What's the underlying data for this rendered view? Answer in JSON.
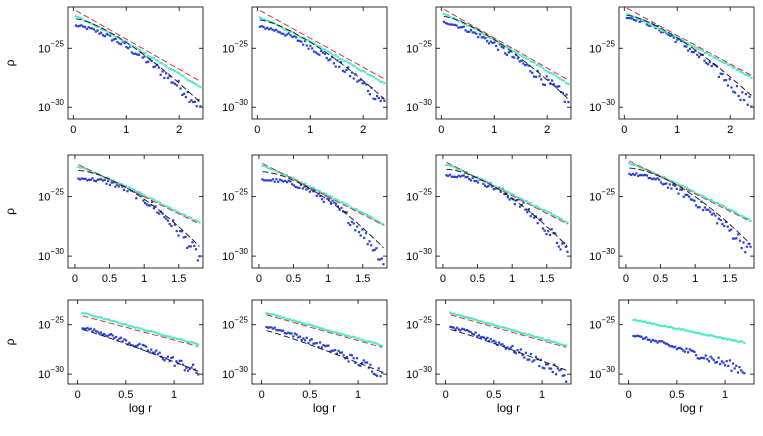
{
  "figure": {
    "ylabel": "ρ",
    "xlabel": "log r"
  },
  "colors": {
    "dark_blue_points": "#2a3fd6",
    "cyan_points": "#4ee8c8",
    "red_dashed": "#e02020",
    "black_dashed": "#111111"
  },
  "chart_data": [
    {
      "type": "scatter",
      "row": 0,
      "col": 0,
      "ylabel": "ρ",
      "xlabel": "",
      "xticks": [
        0,
        1,
        2
      ],
      "yticks": [
        {
          "base": "10",
          "exp": "−25",
          "value": -25
        },
        {
          "base": "10",
          "exp": "−30",
          "value": -30
        }
      ],
      "xlim": [
        -0.1,
        2.45
      ],
      "ylim": [
        -31,
        -21.5
      ],
      "series": [
        {
          "name": "blue",
          "kind": "points",
          "x_range": [
            0.05,
            2.4
          ],
          "y_start": -23.1,
          "y_end": -29.9,
          "curvature": 1.5
        },
        {
          "name": "cyan",
          "kind": "points",
          "x_range": [
            0.05,
            2.4
          ],
          "y_start": -22.3,
          "y_end": -28.3,
          "curvature": 1.1
        },
        {
          "name": "red",
          "kind": "dashed",
          "x_range": [
            0.05,
            2.4
          ],
          "y_start": -21.8,
          "y_end": -27.8,
          "curvature": 1.0
        },
        {
          "name": "black",
          "kind": "dashed",
          "x_range": [
            0.05,
            2.4
          ],
          "y_start": -22.5,
          "y_end": -29.6,
          "curvature": 1.4
        }
      ]
    },
    {
      "type": "scatter",
      "row": 0,
      "col": 1,
      "xlabel": "",
      "xticks": [
        0,
        1,
        2
      ],
      "yticks": [
        {
          "base": "10",
          "exp": "−25",
          "value": -25
        },
        {
          "base": "10",
          "exp": "−30",
          "value": -30
        }
      ],
      "xlim": [
        -0.1,
        2.45
      ],
      "ylim": [
        -31,
        -21.5
      ],
      "series": [
        {
          "name": "blue",
          "kind": "points",
          "x_range": [
            0.05,
            2.4
          ],
          "y_start": -23.2,
          "y_end": -29.6,
          "curvature": 1.5
        },
        {
          "name": "cyan",
          "kind": "points",
          "x_range": [
            0.05,
            2.4
          ],
          "y_start": -22.4,
          "y_end": -28.0,
          "curvature": 1.1
        },
        {
          "name": "red",
          "kind": "dashed",
          "x_range": [
            0.05,
            2.4
          ],
          "y_start": -21.8,
          "y_end": -27.6,
          "curvature": 1.0
        },
        {
          "name": "black",
          "kind": "dashed",
          "x_range": [
            0.05,
            2.4
          ],
          "y_start": -22.6,
          "y_end": -29.3,
          "curvature": 1.4
        }
      ]
    },
    {
      "type": "scatter",
      "row": 0,
      "col": 2,
      "xlabel": "",
      "xticks": [
        0,
        1,
        2
      ],
      "yticks": [
        {
          "base": "10",
          "exp": "−25",
          "value": -25
        },
        {
          "base": "10",
          "exp": "−30",
          "value": -30
        }
      ],
      "xlim": [
        -0.1,
        2.45
      ],
      "ylim": [
        -31,
        -21.5
      ],
      "series": [
        {
          "name": "blue",
          "kind": "points",
          "x_range": [
            0.05,
            2.4
          ],
          "y_start": -22.8,
          "y_end": -29.4,
          "curvature": 1.4
        },
        {
          "name": "cyan",
          "kind": "points",
          "x_range": [
            0.05,
            2.4
          ],
          "y_start": -22.1,
          "y_end": -28.0,
          "curvature": 1.1
        },
        {
          "name": "red",
          "kind": "dashed",
          "x_range": [
            0.05,
            2.4
          ],
          "y_start": -21.7,
          "y_end": -27.7,
          "curvature": 1.0
        },
        {
          "name": "black",
          "kind": "dashed",
          "x_range": [
            0.05,
            2.4
          ],
          "y_start": -22.3,
          "y_end": -29.3,
          "curvature": 1.4
        }
      ]
    },
    {
      "type": "scatter",
      "row": 0,
      "col": 3,
      "xlabel": "",
      "xticks": [
        0,
        1,
        2
      ],
      "yticks": [
        {
          "base": "10",
          "exp": "−25",
          "value": -25
        },
        {
          "base": "10",
          "exp": "−30",
          "value": -30
        }
      ],
      "xlim": [
        -0.1,
        2.45
      ],
      "ylim": [
        -31,
        -21.5
      ],
      "series": [
        {
          "name": "blue",
          "kind": "points",
          "x_range": [
            0.05,
            2.4
          ],
          "y_start": -22.4,
          "y_end": -29.8,
          "curvature": 1.5
        },
        {
          "name": "cyan",
          "kind": "points",
          "x_range": [
            0.05,
            2.4
          ],
          "y_start": -22.1,
          "y_end": -27.5,
          "curvature": 1.1
        },
        {
          "name": "red",
          "kind": "dashed",
          "x_range": [
            0.05,
            2.4
          ],
          "y_start": -21.6,
          "y_end": -27.3,
          "curvature": 1.0
        },
        {
          "name": "black",
          "kind": "dashed",
          "x_range": [
            0.05,
            2.4
          ],
          "y_start": -22.2,
          "y_end": -29.0,
          "curvature": 1.4
        }
      ]
    },
    {
      "type": "scatter",
      "row": 1,
      "col": 0,
      "ylabel": "ρ",
      "xlabel": "",
      "xticks": [
        0,
        0.5,
        1,
        1.5
      ],
      "yticks": [
        {
          "base": "10",
          "exp": "−25",
          "value": -25
        },
        {
          "base": "10",
          "exp": "−30",
          "value": -30
        }
      ],
      "xlim": [
        -0.1,
        1.85
      ],
      "ylim": [
        -31,
        -21.5
      ],
      "series": [
        {
          "name": "blue",
          "kind": "points",
          "x_range": [
            0.05,
            1.8
          ],
          "y_start": -23.5,
          "y_end": -30.2,
          "curvature": 2.2
        },
        {
          "name": "cyan",
          "kind": "points",
          "x_range": [
            0.05,
            1.8
          ],
          "y_start": -22.5,
          "y_end": -27.2,
          "curvature": 1.1
        },
        {
          "name": "red",
          "kind": "dashed",
          "x_range": [
            0.05,
            1.8
          ],
          "y_start": -22.3,
          "y_end": -27.3,
          "curvature": 1.0
        },
        {
          "name": "black",
          "kind": "dashed",
          "x_range": [
            0.05,
            1.8
          ],
          "y_start": -22.8,
          "y_end": -29.2,
          "curvature": 1.6
        }
      ]
    },
    {
      "type": "scatter",
      "row": 1,
      "col": 1,
      "xlabel": "",
      "xticks": [
        0,
        0.5,
        1,
        1.5
      ],
      "yticks": [
        {
          "base": "10",
          "exp": "−25",
          "value": -25
        },
        {
          "base": "10",
          "exp": "−30",
          "value": -30
        }
      ],
      "xlim": [
        -0.1,
        1.85
      ],
      "ylim": [
        -31,
        -21.5
      ],
      "series": [
        {
          "name": "blue",
          "kind": "points",
          "x_range": [
            0.05,
            1.8
          ],
          "y_start": -23.6,
          "y_end": -30.4,
          "curvature": 2.2
        },
        {
          "name": "cyan",
          "kind": "points",
          "x_range": [
            0.05,
            1.8
          ],
          "y_start": -22.4,
          "y_end": -27.3,
          "curvature": 1.1
        },
        {
          "name": "red",
          "kind": "dashed",
          "x_range": [
            0.05,
            1.8
          ],
          "y_start": -22.2,
          "y_end": -27.4,
          "curvature": 1.0
        },
        {
          "name": "black",
          "kind": "dashed",
          "x_range": [
            0.05,
            1.8
          ],
          "y_start": -22.9,
          "y_end": -29.3,
          "curvature": 1.6
        }
      ]
    },
    {
      "type": "scatter",
      "row": 1,
      "col": 2,
      "xlabel": "",
      "xticks": [
        0,
        0.5,
        1,
        1.5
      ],
      "yticks": [
        {
          "base": "10",
          "exp": "−25",
          "value": -25
        },
        {
          "base": "10",
          "exp": "−30",
          "value": -30
        }
      ],
      "xlim": [
        -0.1,
        1.85
      ],
      "ylim": [
        -31,
        -21.5
      ],
      "series": [
        {
          "name": "blue",
          "kind": "points",
          "x_range": [
            0.05,
            1.8
          ],
          "y_start": -23.2,
          "y_end": -29.8,
          "curvature": 2.0
        },
        {
          "name": "cyan",
          "kind": "points",
          "x_range": [
            0.05,
            1.8
          ],
          "y_start": -22.3,
          "y_end": -27.2,
          "curvature": 1.1
        },
        {
          "name": "red",
          "kind": "dashed",
          "x_range": [
            0.05,
            1.8
          ],
          "y_start": -22.1,
          "y_end": -27.3,
          "curvature": 1.0
        },
        {
          "name": "black",
          "kind": "dashed",
          "x_range": [
            0.05,
            1.8
          ],
          "y_start": -22.7,
          "y_end": -29.2,
          "curvature": 1.6
        }
      ]
    },
    {
      "type": "scatter",
      "row": 1,
      "col": 3,
      "xlabel": "",
      "xticks": [
        0,
        0.5,
        1,
        1.5
      ],
      "yticks": [
        {
          "base": "10",
          "exp": "−25",
          "value": -25
        },
        {
          "base": "10",
          "exp": "−30",
          "value": -30
        }
      ],
      "xlim": [
        -0.1,
        1.85
      ],
      "ylim": [
        -31,
        -21.5
      ],
      "series": [
        {
          "name": "blue",
          "kind": "points",
          "x_range": [
            0.05,
            1.8
          ],
          "y_start": -23.1,
          "y_end": -29.6,
          "curvature": 1.7
        },
        {
          "name": "cyan",
          "kind": "points",
          "x_range": [
            0.05,
            1.8
          ],
          "y_start": -22.2,
          "y_end": -27.0,
          "curvature": 1.1
        },
        {
          "name": "red",
          "kind": "dashed",
          "x_range": [
            0.05,
            1.8
          ],
          "y_start": -22.0,
          "y_end": -27.1,
          "curvature": 1.0
        },
        {
          "name": "black",
          "kind": "dashed",
          "x_range": [
            0.05,
            1.8
          ],
          "y_start": -22.6,
          "y_end": -29.0,
          "curvature": 1.6
        }
      ]
    },
    {
      "type": "scatter",
      "row": 2,
      "col": 0,
      "ylabel": "ρ",
      "xlabel": "log r",
      "xticks": [
        0,
        0.5,
        1
      ],
      "yticks": [
        {
          "base": "10",
          "exp": "−25",
          "value": -25
        },
        {
          "base": "10",
          "exp": "−30",
          "value": -30
        }
      ],
      "xlim": [
        -0.1,
        1.3
      ],
      "ylim": [
        -31,
        -22.5
      ],
      "series": [
        {
          "name": "blue",
          "kind": "points",
          "x_range": [
            0.05,
            1.25
          ],
          "y_start": -25.3,
          "y_end": -29.8,
          "curvature": 1.2
        },
        {
          "name": "cyan",
          "kind": "points",
          "x_range": [
            0.05,
            1.25
          ],
          "y_start": -23.8,
          "y_end": -27.0,
          "curvature": 1.0
        },
        {
          "name": "red",
          "kind": "dashed",
          "x_range": [
            0.05,
            1.25
          ],
          "y_start": -24.1,
          "y_end": -27.2,
          "curvature": 1.0
        },
        {
          "name": "black",
          "kind": "dashed",
          "x_range": [
            0.05,
            1.25
          ],
          "y_start": -25.5,
          "y_end": -29.7,
          "curvature": 1.1
        }
      ]
    },
    {
      "type": "scatter",
      "row": 2,
      "col": 1,
      "xlabel": "log r",
      "xticks": [
        0,
        0.5,
        1
      ],
      "yticks": [
        {
          "base": "10",
          "exp": "−25",
          "value": -25
        },
        {
          "base": "10",
          "exp": "−30",
          "value": -30
        }
      ],
      "xlim": [
        -0.1,
        1.3
      ],
      "ylim": [
        -31,
        -22.5
      ],
      "series": [
        {
          "name": "blue",
          "kind": "points",
          "x_range": [
            0.05,
            1.25
          ],
          "y_start": -25.2,
          "y_end": -29.9,
          "curvature": 1.2
        },
        {
          "name": "cyan",
          "kind": "points",
          "x_range": [
            0.05,
            1.25
          ],
          "y_start": -23.8,
          "y_end": -27.1,
          "curvature": 1.0
        },
        {
          "name": "red",
          "kind": "dashed",
          "x_range": [
            0.05,
            1.25
          ],
          "y_start": -24.0,
          "y_end": -27.3,
          "curvature": 1.0
        },
        {
          "name": "black",
          "kind": "dashed",
          "x_range": [
            0.05,
            1.25
          ],
          "y_start": -25.6,
          "y_end": -29.8,
          "curvature": 1.1
        }
      ]
    },
    {
      "type": "scatter",
      "row": 2,
      "col": 2,
      "xlabel": "log r",
      "xticks": [
        0,
        0.5,
        1
      ],
      "yticks": [
        {
          "base": "10",
          "exp": "−25",
          "value": -25
        },
        {
          "base": "10",
          "exp": "−30",
          "value": -30
        }
      ],
      "xlim": [
        -0.1,
        1.3
      ],
      "ylim": [
        -31,
        -22.5
      ],
      "series": [
        {
          "name": "blue",
          "kind": "points",
          "x_range": [
            0.05,
            1.25
          ],
          "y_start": -25.3,
          "y_end": -30.2,
          "curvature": 1.3
        },
        {
          "name": "cyan",
          "kind": "points",
          "x_range": [
            0.05,
            1.25
          ],
          "y_start": -23.8,
          "y_end": -27.1,
          "curvature": 1.0
        },
        {
          "name": "red",
          "kind": "dashed",
          "x_range": [
            0.05,
            1.25
          ],
          "y_start": -24.0,
          "y_end": -27.3,
          "curvature": 1.0
        },
        {
          "name": "black",
          "kind": "dashed",
          "x_range": [
            0.05,
            1.25
          ],
          "y_start": -25.5,
          "y_end": -29.6,
          "curvature": 1.1
        }
      ]
    },
    {
      "type": "scatter",
      "row": 2,
      "col": 3,
      "xlabel": "log r",
      "xticks": [
        0,
        0.5,
        1
      ],
      "yticks": [
        {
          "base": "10",
          "exp": "−25",
          "value": -25
        },
        {
          "base": "10",
          "exp": "−30",
          "value": -30
        }
      ],
      "xlim": [
        -0.1,
        1.3
      ],
      "ylim": [
        -31,
        -22.5
      ],
      "series": [
        {
          "name": "blue",
          "kind": "points",
          "x_range": [
            0.05,
            1.2
          ],
          "y_start": -26.1,
          "y_end": -29.6,
          "curvature": 1.1
        },
        {
          "name": "cyan",
          "kind": "points",
          "x_range": [
            0.05,
            1.2
          ],
          "y_start": -24.5,
          "y_end": -26.8,
          "curvature": 1.0
        }
      ]
    }
  ]
}
